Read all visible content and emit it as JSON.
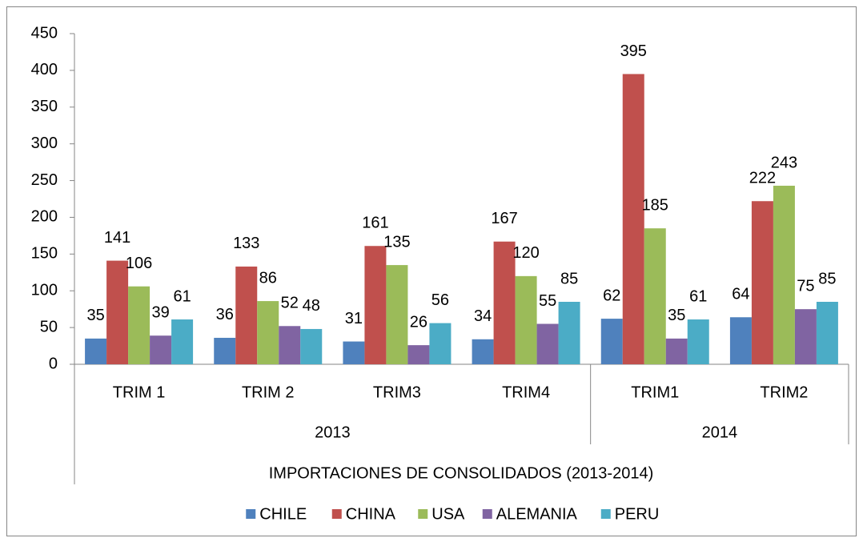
{
  "chart_data": {
    "type": "bar",
    "x_label": "IMPORTACIONES DE CONSOLIDADOS (2013-2014)",
    "groups": [
      {
        "name": "2013",
        "categories": [
          "TRIM 1",
          "TRIM 2",
          "TRIM3",
          "TRIM4"
        ]
      },
      {
        "name": "2014",
        "categories": [
          "TRIM1",
          "TRIM2"
        ]
      }
    ],
    "series": [
      {
        "name": "CHILE",
        "color": "#4f81bd",
        "values": [
          35,
          36,
          31,
          34,
          62,
          64
        ]
      },
      {
        "name": "CHINA",
        "color": "#c0504d",
        "values": [
          141,
          133,
          161,
          167,
          395,
          222
        ]
      },
      {
        "name": "USA",
        "color": "#9bbb59",
        "values": [
          106,
          86,
          135,
          120,
          185,
          243
        ]
      },
      {
        "name": "ALEMANIA",
        "color": "#8064a2",
        "values": [
          39,
          52,
          26,
          55,
          35,
          75
        ]
      },
      {
        "name": "PERU",
        "color": "#4bacc6",
        "values": [
          61,
          48,
          56,
          85,
          61,
          85
        ]
      }
    ],
    "ylim": [
      0,
      450
    ],
    "yticks": [
      0,
      50,
      100,
      150,
      200,
      250,
      300,
      350,
      400,
      450
    ],
    "grid": false,
    "legend": "bottom"
  }
}
